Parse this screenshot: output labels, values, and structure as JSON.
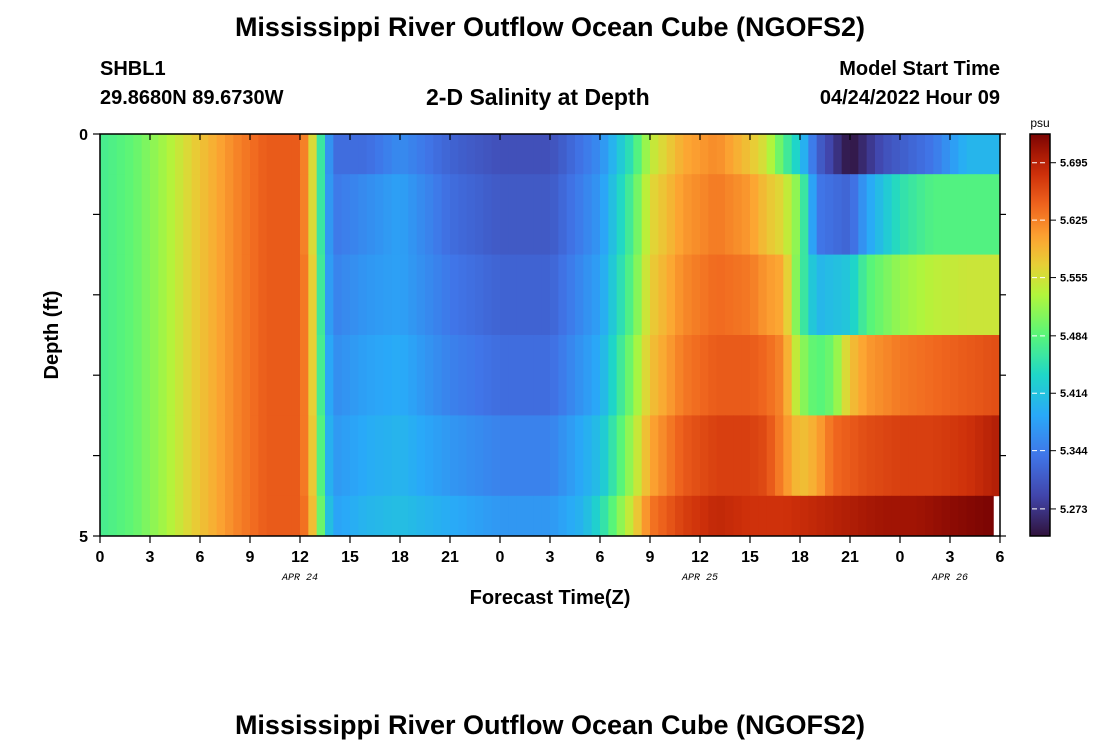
{
  "title": "Mississippi River Outflow Ocean Cube (NGOFS2)",
  "title_repeat": "Mississippi River Outflow Ocean Cube (NGOFS2)",
  "station": "SHBL1",
  "coordinates": "29.8680N  89.6730W",
  "subtitle": "2-D Salinity at Depth",
  "model_start_label": "Model Start Time",
  "model_start_value": "04/24/2022 Hour 09",
  "chart_data": {
    "type": "heatmap",
    "xlabel": "Forecast Time(Z)",
    "ylabel": "Depth (ft)",
    "x_range_hours": [
      0,
      54
    ],
    "y_range_ft": [
      0,
      5
    ],
    "x_tick_hours": [
      0,
      3,
      6,
      9,
      12,
      15,
      18,
      21,
      24,
      27,
      30,
      33,
      36,
      39,
      42,
      45,
      48,
      51,
      54
    ],
    "x_tick_labels": [
      "0",
      "3",
      "6",
      "9",
      "12",
      "15",
      "18",
      "21",
      "0",
      "3",
      "6",
      "9",
      "12",
      "15",
      "18",
      "21",
      "0",
      "3",
      "6"
    ],
    "date_labels": [
      {
        "text": "APR 24",
        "hour": 12
      },
      {
        "text": "APR 25",
        "hour": 36
      },
      {
        "text": "APR 26",
        "hour": 51
      }
    ],
    "y_tick_values": [
      0,
      1,
      2,
      3,
      4,
      5
    ],
    "y_tick_labels": [
      "0",
      "",
      "",
      "",
      "",
      "5"
    ],
    "colorbar": {
      "unit": "psu",
      "min": 5.24,
      "max": 5.73,
      "tick_values": [
        5.273,
        5.344,
        5.414,
        5.484,
        5.555,
        5.625,
        5.695
      ],
      "tick_labels": [
        "5.273",
        "5.344",
        "5.414",
        "5.484",
        "5.555",
        "5.625",
        "5.695"
      ],
      "colormap": "turbo"
    },
    "layers": [
      {
        "depth_ft": [
          0,
          0.5
        ],
        "points": [
          [
            0,
            5.47
          ],
          [
            2,
            5.49
          ],
          [
            4,
            5.53
          ],
          [
            6,
            5.58
          ],
          [
            8,
            5.62
          ],
          [
            10,
            5.65
          ],
          [
            12,
            5.65
          ],
          [
            12.5,
            5.6
          ],
          [
            13,
            5.52
          ],
          [
            13.5,
            5.4
          ],
          [
            14,
            5.33
          ],
          [
            16,
            5.33
          ],
          [
            18,
            5.36
          ],
          [
            21,
            5.32
          ],
          [
            24,
            5.3
          ],
          [
            27,
            5.3
          ],
          [
            30,
            5.36
          ],
          [
            32,
            5.46
          ],
          [
            33,
            5.54
          ],
          [
            35,
            5.6
          ],
          [
            37,
            5.62
          ],
          [
            39,
            5.58
          ],
          [
            40,
            5.55
          ],
          [
            41,
            5.48
          ],
          [
            42,
            5.42
          ],
          [
            43,
            5.32
          ],
          [
            45,
            5.24
          ],
          [
            47,
            5.3
          ],
          [
            50,
            5.34
          ],
          [
            52,
            5.4
          ],
          [
            54,
            5.4
          ]
        ]
      },
      {
        "depth_ft": [
          0.5,
          1.5
        ],
        "points": [
          [
            0,
            5.47
          ],
          [
            2,
            5.49
          ],
          [
            4,
            5.53
          ],
          [
            6,
            5.58
          ],
          [
            8,
            5.62
          ],
          [
            10,
            5.65
          ],
          [
            12,
            5.65
          ],
          [
            12.5,
            5.6
          ],
          [
            13,
            5.52
          ],
          [
            13.5,
            5.4
          ],
          [
            14,
            5.34
          ],
          [
            16,
            5.36
          ],
          [
            18,
            5.38
          ],
          [
            21,
            5.33
          ],
          [
            24,
            5.31
          ],
          [
            27,
            5.31
          ],
          [
            30,
            5.37
          ],
          [
            32,
            5.48
          ],
          [
            33,
            5.56
          ],
          [
            35,
            5.61
          ],
          [
            37,
            5.63
          ],
          [
            39,
            5.61
          ],
          [
            40,
            5.58
          ],
          [
            41,
            5.56
          ],
          [
            42,
            5.5
          ],
          [
            43,
            5.34
          ],
          [
            45,
            5.32
          ],
          [
            46,
            5.38
          ],
          [
            48,
            5.45
          ],
          [
            50,
            5.48
          ],
          [
            52,
            5.48
          ],
          [
            54,
            5.48
          ]
        ]
      },
      {
        "depth_ft": [
          1.5,
          2.5
        ],
        "points": [
          [
            0,
            5.47
          ],
          [
            2,
            5.49
          ],
          [
            4,
            5.53
          ],
          [
            6,
            5.58
          ],
          [
            8,
            5.62
          ],
          [
            10,
            5.65
          ],
          [
            12,
            5.65
          ],
          [
            12.5,
            5.61
          ],
          [
            13,
            5.53
          ],
          [
            13.5,
            5.4
          ],
          [
            14,
            5.35
          ],
          [
            16,
            5.37
          ],
          [
            18,
            5.38
          ],
          [
            21,
            5.34
          ],
          [
            24,
            5.32
          ],
          [
            27,
            5.32
          ],
          [
            30,
            5.38
          ],
          [
            32,
            5.49
          ],
          [
            33,
            5.57
          ],
          [
            35,
            5.62
          ],
          [
            37,
            5.64
          ],
          [
            39,
            5.63
          ],
          [
            40,
            5.61
          ],
          [
            41,
            5.6
          ],
          [
            42,
            5.48
          ],
          [
            43,
            5.4
          ],
          [
            45,
            5.42
          ],
          [
            46,
            5.48
          ],
          [
            48,
            5.52
          ],
          [
            50,
            5.54
          ],
          [
            52,
            5.55
          ],
          [
            54,
            5.55
          ]
        ]
      },
      {
        "depth_ft": [
          2.5,
          3.5
        ],
        "points": [
          [
            0,
            5.47
          ],
          [
            2,
            5.49
          ],
          [
            4,
            5.53
          ],
          [
            6,
            5.58
          ],
          [
            8,
            5.62
          ],
          [
            10,
            5.65
          ],
          [
            12,
            5.65
          ],
          [
            12.5,
            5.61
          ],
          [
            13,
            5.53
          ],
          [
            13.5,
            5.41
          ],
          [
            14,
            5.36
          ],
          [
            16,
            5.38
          ],
          [
            18,
            5.39
          ],
          [
            21,
            5.35
          ],
          [
            24,
            5.33
          ],
          [
            27,
            5.33
          ],
          [
            30,
            5.39
          ],
          [
            32,
            5.51
          ],
          [
            33,
            5.58
          ],
          [
            35,
            5.63
          ],
          [
            37,
            5.65
          ],
          [
            39,
            5.65
          ],
          [
            40,
            5.64
          ],
          [
            41,
            5.62
          ],
          [
            42,
            5.52
          ],
          [
            43,
            5.48
          ],
          [
            44,
            5.5
          ],
          [
            45,
            5.58
          ],
          [
            46,
            5.61
          ],
          [
            48,
            5.63
          ],
          [
            50,
            5.64
          ],
          [
            52,
            5.65
          ],
          [
            54,
            5.66
          ]
        ]
      },
      {
        "depth_ft": [
          3.5,
          4.5
        ],
        "points": [
          [
            0,
            5.47
          ],
          [
            2,
            5.49
          ],
          [
            4,
            5.53
          ],
          [
            6,
            5.58
          ],
          [
            8,
            5.62
          ],
          [
            10,
            5.65
          ],
          [
            12,
            5.65
          ],
          [
            12.5,
            5.61
          ],
          [
            13,
            5.54
          ],
          [
            13.5,
            5.42
          ],
          [
            14,
            5.37
          ],
          [
            16,
            5.39
          ],
          [
            18,
            5.4
          ],
          [
            21,
            5.37
          ],
          [
            24,
            5.35
          ],
          [
            27,
            5.35
          ],
          [
            30,
            5.41
          ],
          [
            32,
            5.53
          ],
          [
            33,
            5.6
          ],
          [
            35,
            5.65
          ],
          [
            37,
            5.67
          ],
          [
            39,
            5.67
          ],
          [
            40,
            5.66
          ],
          [
            41,
            5.62
          ],
          [
            42,
            5.58
          ],
          [
            43,
            5.6
          ],
          [
            44,
            5.64
          ],
          [
            46,
            5.66
          ],
          [
            48,
            5.67
          ],
          [
            50,
            5.67
          ],
          [
            52,
            5.68
          ],
          [
            54,
            5.7
          ]
        ]
      },
      {
        "depth_ft": [
          4.5,
          5.0
        ],
        "points": [
          [
            0,
            5.47
          ],
          [
            2,
            5.49
          ],
          [
            4,
            5.53
          ],
          [
            6,
            5.58
          ],
          [
            8,
            5.62
          ],
          [
            10,
            5.65
          ],
          [
            12,
            5.65
          ],
          [
            12.5,
            5.62
          ],
          [
            13,
            5.55
          ],
          [
            13.5,
            5.44
          ],
          [
            14,
            5.38
          ],
          [
            16,
            5.4
          ],
          [
            18,
            5.41
          ],
          [
            21,
            5.39
          ],
          [
            24,
            5.37
          ],
          [
            27,
            5.37
          ],
          [
            29,
            5.4
          ],
          [
            30,
            5.44
          ],
          [
            32,
            5.56
          ],
          [
            33,
            5.63
          ],
          [
            35,
            5.67
          ],
          [
            37,
            5.69
          ],
          [
            39,
            5.68
          ],
          [
            41,
            5.68
          ],
          [
            43,
            5.69
          ],
          [
            45,
            5.7
          ],
          [
            47,
            5.71
          ],
          [
            49,
            5.71
          ],
          [
            51,
            5.72
          ],
          [
            53.6,
            5.73
          ]
        ]
      }
    ]
  }
}
